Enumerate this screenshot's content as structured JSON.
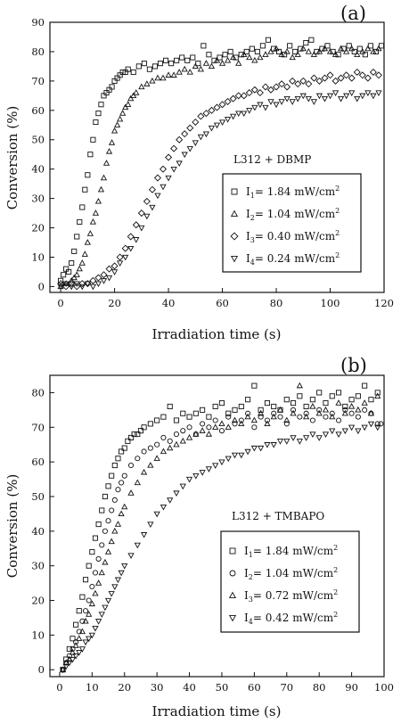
{
  "chart_data": [
    {
      "type": "scatter",
      "panel_label": "(a)",
      "annotation": "L312 + DBMP",
      "xlabel": "Irradiation time (s)",
      "ylabel": "Conversion (%)",
      "xlim": [
        -4,
        120
      ],
      "ylim": [
        -2,
        90
      ],
      "xticks": [
        0,
        20,
        40,
        60,
        80,
        100,
        120
      ],
      "yticks": [
        0,
        10,
        20,
        30,
        40,
        50,
        60,
        70,
        80,
        90
      ],
      "legend_position": "right-center",
      "grid": false,
      "series": [
        {
          "name": "I",
          "sub": "1",
          "suffix": "= 1.84 mW/cm",
          "sup": "2",
          "marker": "square",
          "x": [
            0,
            1,
            2,
            3,
            4,
            5,
            6,
            7,
            8,
            9,
            10,
            11,
            12,
            13,
            14,
            15,
            16,
            17,
            18,
            19,
            20,
            21,
            22,
            23,
            24,
            25,
            27,
            29,
            31,
            33,
            35,
            37,
            39,
            41,
            43,
            45,
            47,
            49,
            51,
            53,
            55,
            57,
            59,
            61,
            63,
            65,
            67,
            69,
            71,
            73,
            75,
            77,
            79,
            81,
            83,
            85,
            87,
            89,
            91,
            93,
            95,
            97,
            99,
            101,
            103,
            105,
            107,
            109,
            111,
            113,
            115,
            117,
            119
          ],
          "y": [
            2,
            4,
            6,
            5,
            8,
            12,
            17,
            22,
            27,
            33,
            38,
            45,
            50,
            56,
            59,
            62,
            65,
            66,
            67,
            68,
            70,
            71,
            72,
            73,
            73,
            74,
            73,
            75,
            76,
            74,
            75,
            76,
            77,
            76,
            77,
            78,
            77,
            78,
            76,
            82,
            79,
            77,
            78,
            79,
            80,
            78,
            79,
            80,
            81,
            80,
            82,
            84,
            81,
            80,
            79,
            82,
            80,
            81,
            83,
            84,
            80,
            81,
            82,
            80,
            79,
            81,
            82,
            80,
            81,
            79,
            82,
            80,
            82
          ]
        },
        {
          "name": "I",
          "sub": "2",
          "suffix": "= 1.04 mW/cm",
          "sup": "2",
          "marker": "triangle-up",
          "x": [
            0,
            2,
            4,
            5,
            6,
            7,
            8,
            9,
            10,
            11,
            12,
            13,
            14,
            15,
            16,
            17,
            18,
            19,
            20,
            21,
            22,
            23,
            24,
            25,
            26,
            27,
            28,
            30,
            32,
            34,
            36,
            38,
            40,
            42,
            44,
            46,
            48,
            50,
            52,
            54,
            56,
            58,
            60,
            62,
            64,
            66,
            68,
            70,
            72,
            74,
            76,
            78,
            80,
            82,
            84,
            86,
            88,
            90,
            92,
            94,
            96,
            98,
            100,
            102,
            104,
            106,
            108,
            110,
            112,
            114,
            116,
            118
          ],
          "y": [
            0,
            1,
            2,
            3,
            4,
            6,
            8,
            11,
            15,
            18,
            22,
            25,
            29,
            33,
            37,
            42,
            46,
            49,
            53,
            55,
            57,
            59,
            61,
            62,
            64,
            65,
            66,
            68,
            69,
            70,
            71,
            71,
            72,
            72,
            73,
            74,
            73,
            75,
            74,
            76,
            75,
            77,
            76,
            77,
            78,
            76,
            79,
            78,
            77,
            78,
            79,
            80,
            81,
            79,
            80,
            78,
            79,
            81,
            80,
            79,
            80,
            81,
            80,
            79,
            81,
            80,
            81,
            79,
            80,
            81,
            80,
            81
          ]
        },
        {
          "name": "I",
          "sub": "3",
          "suffix": "= 0.40 mW/cm",
          "sup": "2",
          "marker": "diamond",
          "x": [
            0,
            2,
            4,
            6,
            8,
            10,
            12,
            14,
            16,
            18,
            20,
            22,
            24,
            26,
            28,
            30,
            32,
            34,
            36,
            38,
            40,
            42,
            44,
            46,
            48,
            50,
            52,
            54,
            56,
            58,
            60,
            62,
            64,
            66,
            68,
            70,
            72,
            74,
            76,
            78,
            80,
            82,
            84,
            86,
            88,
            90,
            92,
            94,
            96,
            98,
            100,
            102,
            104,
            106,
            108,
            110,
            112,
            114,
            116,
            118
          ],
          "y": [
            1,
            0,
            1,
            0,
            1,
            1,
            2,
            3,
            4,
            6,
            7,
            10,
            13,
            17,
            21,
            25,
            29,
            33,
            37,
            40,
            44,
            47,
            50,
            52,
            54,
            56,
            58,
            59,
            60,
            61,
            62,
            63,
            64,
            65,
            65,
            66,
            67,
            66,
            68,
            67,
            68,
            69,
            68,
            70,
            69,
            70,
            69,
            71,
            70,
            71,
            72,
            70,
            71,
            72,
            71,
            73,
            72,
            71,
            73,
            72
          ]
        },
        {
          "name": "I",
          "sub": "4",
          "suffix": "= 0.24 mW/cm",
          "sup": "2",
          "marker": "triangle-down",
          "x": [
            0,
            2,
            4,
            6,
            8,
            10,
            12,
            14,
            16,
            18,
            20,
            22,
            24,
            26,
            28,
            30,
            32,
            34,
            36,
            38,
            40,
            42,
            44,
            46,
            48,
            50,
            52,
            54,
            56,
            58,
            60,
            62,
            64,
            66,
            68,
            70,
            72,
            74,
            76,
            78,
            80,
            82,
            84,
            86,
            88,
            90,
            92,
            94,
            96,
            98,
            100,
            102,
            104,
            106,
            108,
            110,
            112,
            114,
            116,
            118
          ],
          "y": [
            0,
            1,
            0,
            1,
            0,
            1,
            0,
            1,
            2,
            3,
            5,
            8,
            10,
            13,
            16,
            20,
            24,
            27,
            31,
            34,
            37,
            40,
            42,
            45,
            47,
            49,
            51,
            52,
            54,
            55,
            56,
            57,
            58,
            59,
            59,
            60,
            61,
            62,
            61,
            63,
            62,
            63,
            64,
            63,
            64,
            65,
            64,
            63,
            65,
            64,
            65,
            66,
            64,
            65,
            66,
            64,
            65,
            66,
            65,
            66
          ]
        }
      ]
    },
    {
      "type": "scatter",
      "panel_label": "(b)",
      "annotation": "L312 + TMBAPO",
      "xlabel": "Irradiation time (s)",
      "ylabel": "Conversion (%)",
      "xlim": [
        -3,
        100
      ],
      "ylim": [
        -2,
        85
      ],
      "xticks": [
        0,
        10,
        20,
        30,
        40,
        50,
        60,
        70,
        80,
        90,
        100
      ],
      "yticks": [
        0,
        10,
        20,
        30,
        40,
        50,
        60,
        70,
        80
      ],
      "legend_position": "right-center",
      "grid": false,
      "series": [
        {
          "name": "I",
          "sub": "1",
          "suffix": "= 1.84 mW/cm",
          "sup": "2",
          "marker": "square",
          "x": [
            1,
            2,
            3,
            4,
            5,
            6,
            7,
            8,
            9,
            10,
            11,
            12,
            13,
            14,
            15,
            16,
            17,
            18,
            19,
            20,
            21,
            22,
            23,
            24,
            25,
            26,
            28,
            30,
            32,
            34,
            36,
            38,
            40,
            42,
            44,
            46,
            48,
            50,
            52,
            54,
            56,
            58,
            60,
            62,
            64,
            66,
            68,
            70,
            72,
            74,
            76,
            78,
            80,
            82,
            84,
            86,
            88,
            90,
            92,
            94,
            96,
            98
          ],
          "y": [
            0,
            3,
            6,
            9,
            13,
            17,
            21,
            26,
            30,
            34,
            38,
            42,
            46,
            50,
            53,
            56,
            59,
            61,
            63,
            64,
            66,
            67,
            68,
            68,
            69,
            70,
            71,
            72,
            73,
            76,
            72,
            74,
            73,
            74,
            75,
            73,
            76,
            77,
            74,
            75,
            76,
            78,
            82,
            75,
            77,
            76,
            75,
            78,
            77,
            79,
            76,
            78,
            80,
            77,
            79,
            80,
            76,
            78,
            79,
            82,
            78,
            80
          ]
        },
        {
          "name": "I",
          "sub": "2",
          "suffix": "= 1.04 mW/cm",
          "sup": "2",
          "marker": "circle",
          "x": [
            1,
            2,
            3,
            4,
            5,
            6,
            7,
            8,
            9,
            10,
            11,
            12,
            13,
            14,
            15,
            16,
            17,
            18,
            19,
            20,
            22,
            24,
            26,
            28,
            30,
            32,
            34,
            36,
            38,
            40,
            42,
            44,
            46,
            48,
            50,
            52,
            54,
            56,
            58,
            60,
            62,
            64,
            66,
            68,
            70,
            72,
            74,
            76,
            78,
            80,
            82,
            84,
            86,
            88,
            90,
            92,
            94,
            96,
            98,
            99
          ],
          "y": [
            0,
            2,
            4,
            6,
            8,
            11,
            14,
            17,
            20,
            24,
            28,
            32,
            36,
            40,
            43,
            46,
            49,
            52,
            54,
            56,
            59,
            61,
            63,
            64,
            65,
            67,
            66,
            68,
            69,
            70,
            68,
            71,
            70,
            72,
            69,
            73,
            71,
            72,
            74,
            70,
            73,
            72,
            74,
            73,
            71,
            75,
            73,
            74,
            72,
            75,
            73,
            74,
            72,
            75,
            74,
            73,
            75,
            74,
            71,
            71
          ]
        },
        {
          "name": "I",
          "sub": "3",
          "suffix": "= 0.72 mW/cm",
          "sup": "2",
          "marker": "triangle-up",
          "x": [
            1,
            2,
            3,
            4,
            5,
            6,
            7,
            8,
            9,
            10,
            11,
            12,
            13,
            14,
            15,
            16,
            17,
            18,
            19,
            20,
            22,
            24,
            26,
            28,
            30,
            32,
            34,
            36,
            38,
            40,
            42,
            44,
            46,
            48,
            50,
            52,
            54,
            56,
            58,
            60,
            62,
            64,
            66,
            68,
            70,
            72,
            74,
            76,
            78,
            80,
            82,
            84,
            86,
            88,
            90,
            92,
            94,
            96,
            98
          ],
          "y": [
            0,
            2,
            3,
            5,
            7,
            9,
            11,
            14,
            16,
            19,
            22,
            25,
            28,
            31,
            34,
            37,
            40,
            42,
            45,
            47,
            51,
            54,
            57,
            59,
            61,
            63,
            64,
            65,
            66,
            67,
            68,
            69,
            68,
            70,
            71,
            70,
            72,
            71,
            73,
            72,
            74,
            71,
            73,
            75,
            72,
            74,
            82,
            73,
            76,
            74,
            75,
            73,
            77,
            74,
            76,
            75,
            77,
            74,
            79
          ]
        },
        {
          "name": "I",
          "sub": "4",
          "suffix": "= 0.42 mW/cm",
          "sup": "2",
          "marker": "triangle-down",
          "x": [
            1,
            2,
            3,
            4,
            5,
            6,
            7,
            8,
            9,
            10,
            11,
            12,
            13,
            14,
            15,
            16,
            17,
            18,
            19,
            20,
            22,
            24,
            26,
            28,
            30,
            32,
            34,
            36,
            38,
            40,
            42,
            44,
            46,
            48,
            50,
            52,
            54,
            56,
            58,
            60,
            62,
            64,
            66,
            68,
            70,
            72,
            74,
            76,
            78,
            80,
            82,
            84,
            86,
            88,
            90,
            92,
            94,
            96,
            98
          ],
          "y": [
            0,
            1,
            2,
            3,
            4,
            5,
            6,
            8,
            9,
            10,
            12,
            14,
            16,
            18,
            20,
            22,
            24,
            26,
            28,
            30,
            33,
            36,
            39,
            42,
            45,
            47,
            49,
            51,
            53,
            55,
            56,
            57,
            58,
            59,
            60,
            61,
            62,
            62,
            63,
            64,
            64,
            65,
            65,
            66,
            66,
            67,
            66,
            67,
            68,
            67,
            68,
            69,
            68,
            69,
            70,
            69,
            70,
            71,
            70
          ]
        }
      ]
    }
  ]
}
